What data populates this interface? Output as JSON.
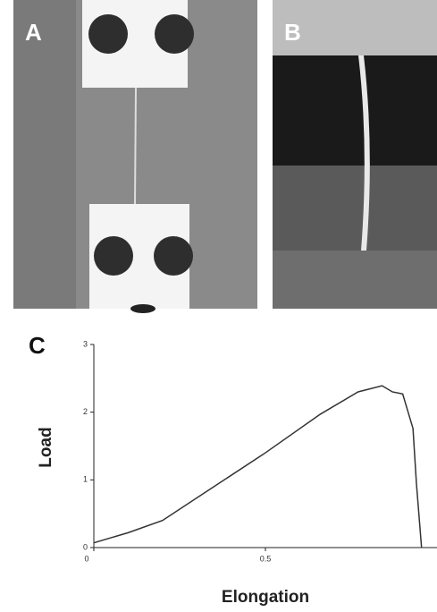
{
  "panel_labels": [
    "A",
    "B",
    "C"
  ],
  "chart_data": {
    "type": "line",
    "x_label": "Elongation",
    "y_label": "Load",
    "x": [
      0,
      0.1,
      0.2,
      0.35,
      0.5,
      0.66,
      0.77,
      0.84,
      0.87,
      0.9,
      0.93,
      0.94,
      0.955
    ],
    "series": [
      {
        "name": "Load",
        "color": "#333333",
        "values": [
          0.07,
          0.22,
          0.4,
          0.9,
          1.4,
          1.97,
          2.3,
          2.39,
          2.3,
          2.27,
          1.76,
          0.95,
          0
        ]
      }
    ],
    "xlim": [
      0,
      1
    ],
    "ylim": [
      0,
      3
    ],
    "xticks": [
      0,
      0.5
    ],
    "yticks": [
      0,
      1,
      2,
      3
    ],
    "grid": false
  }
}
